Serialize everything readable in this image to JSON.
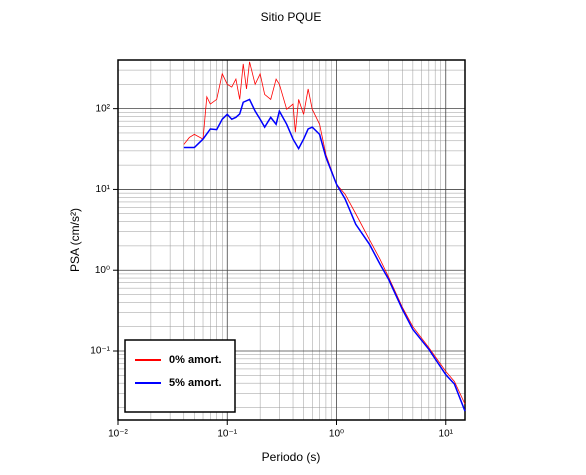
{
  "chart_data": {
    "type": "line",
    "title": "Sitio PQUE",
    "x_label": "Periodo (s)",
    "y_label": "PSA (cm/s²)",
    "xscale": "log",
    "yscale": "log",
    "grid": true,
    "legend": "lower-left",
    "xlim": [
      0.01,
      15
    ],
    "ylim": [
      0.014,
      400
    ],
    "xticks": [
      {
        "value": 0.01,
        "label": "10⁻²"
      },
      {
        "value": 0.1,
        "label": "10⁻¹"
      },
      {
        "value": 1,
        "label": "10⁰"
      },
      {
        "value": 10,
        "label": "10¹"
      }
    ],
    "yticks": [
      {
        "value": 0.1,
        "label": "10⁻¹"
      },
      {
        "value": 1,
        "label": "10⁰"
      },
      {
        "value": 10,
        "label": "10¹"
      },
      {
        "value": 100,
        "label": "10²"
      }
    ],
    "series": [
      {
        "name": "0% amort.",
        "color": "#ff0000",
        "x": [
          0.04,
          0.045,
          0.05,
          0.06,
          0.065,
          0.07,
          0.08,
          0.09,
          0.1,
          0.11,
          0.12,
          0.13,
          0.14,
          0.15,
          0.16,
          0.18,
          0.2,
          0.22,
          0.25,
          0.28,
          0.3,
          0.35,
          0.4,
          0.42,
          0.45,
          0.5,
          0.55,
          0.6,
          0.7,
          0.8,
          1.0,
          1.2,
          1.5,
          2,
          2.5,
          3,
          4,
          5,
          7,
          10,
          12,
          15
        ],
        "values": [
          36,
          44,
          48,
          42,
          140,
          114,
          130,
          270,
          200,
          185,
          232,
          130,
          358,
          175,
          380,
          200,
          270,
          150,
          130,
          232,
          200,
          98,
          114,
          51,
          130,
          85,
          175,
          98,
          64,
          27,
          11.6,
          8.7,
          5.0,
          2.4,
          1.37,
          0.82,
          0.35,
          0.2,
          0.11,
          0.056,
          0.042,
          0.022
        ]
      },
      {
        "name": "5% amort.",
        "color": "#0000ff",
        "x": [
          0.04,
          0.05,
          0.06,
          0.07,
          0.08,
          0.09,
          0.1,
          0.11,
          0.12,
          0.13,
          0.14,
          0.16,
          0.18,
          0.2,
          0.22,
          0.25,
          0.28,
          0.3,
          0.35,
          0.4,
          0.45,
          0.5,
          0.55,
          0.6,
          0.7,
          0.8,
          1.0,
          1.2,
          1.5,
          2,
          2.5,
          3,
          4,
          5,
          7,
          10,
          12,
          15
        ],
        "values": [
          33,
          33,
          42,
          56,
          55,
          74,
          85,
          74,
          78,
          86,
          120,
          130,
          93,
          74,
          59,
          78,
          64,
          93,
          64,
          42,
          32,
          42,
          56,
          59,
          48,
          25,
          11.6,
          7.6,
          3.7,
          2.1,
          1.19,
          0.77,
          0.33,
          0.185,
          0.105,
          0.051,
          0.039,
          0.018
        ]
      }
    ]
  }
}
